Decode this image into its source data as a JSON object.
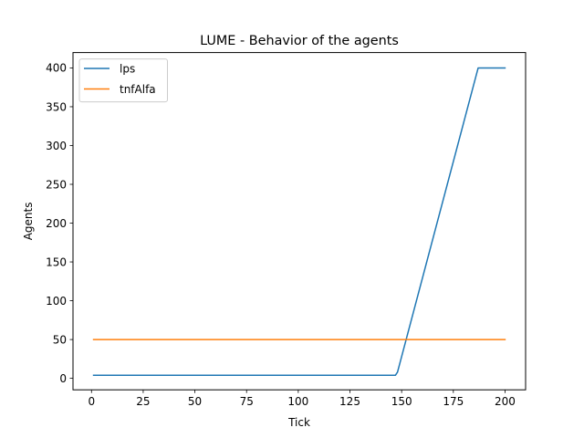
{
  "chart_data": {
    "type": "line",
    "title": "LUME - Behavior of the agents",
    "xlabel": "Tick",
    "ylabel": "Agents",
    "xlim": [
      -8.95,
      209.95
    ],
    "ylim": [
      -14.8,
      419.8
    ],
    "xticks": [
      0,
      25,
      50,
      75,
      100,
      125,
      150,
      175,
      200
    ],
    "yticks": [
      0,
      50,
      100,
      150,
      200,
      250,
      300,
      350,
      400
    ],
    "xtick_labels": [
      "0",
      "25",
      "50",
      "75",
      "100",
      "125",
      "150",
      "175",
      "200"
    ],
    "ytick_labels": [
      "0",
      "50",
      "100",
      "150",
      "200",
      "250",
      "300",
      "350",
      "400"
    ],
    "grid": false,
    "legend_position": "top-left",
    "series": [
      {
        "name": "lps",
        "color": "#1f77b4",
        "x": [
          1,
          147,
          148,
          187,
          200
        ],
        "y": [
          4,
          4,
          8,
          400,
          400
        ]
      },
      {
        "name": "tnfAlfa",
        "color": "#ff7f0e",
        "x": [
          1,
          200
        ],
        "y": [
          50,
          50
        ]
      }
    ]
  }
}
